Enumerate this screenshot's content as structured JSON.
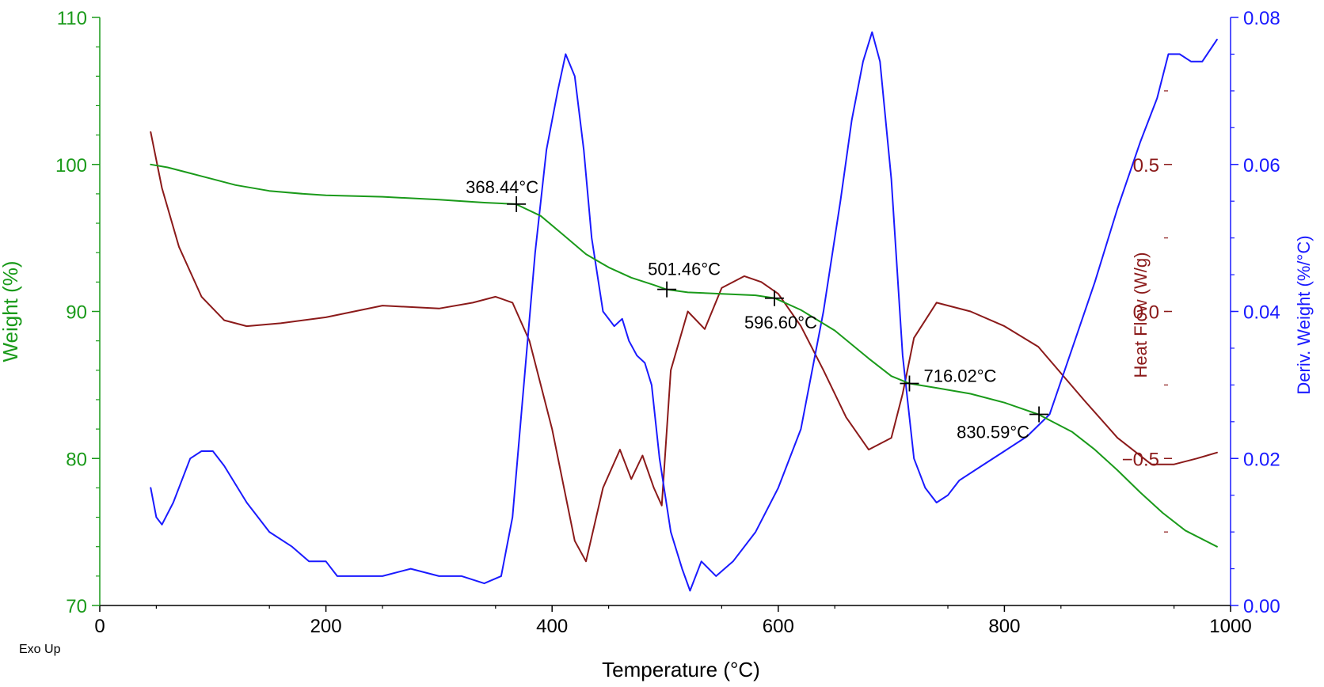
{
  "chart_data": {
    "type": "line",
    "xlabel": "Temperature (°C)",
    "xlim": [
      0,
      1000
    ],
    "x_ticks": [
      "0",
      "200",
      "400",
      "600",
      "800",
      "1000"
    ],
    "x_tick_values": [
      0,
      200,
      400,
      600,
      800,
      1000
    ],
    "grid": false,
    "corner_label": "Exo Up",
    "axes": {
      "weight": {
        "label": "Weight (%)",
        "side": "left",
        "color": "#1a9a1a",
        "lim": [
          70,
          110
        ],
        "ticks": [
          "70",
          "80",
          "90",
          "100",
          "110"
        ],
        "tick_values": [
          70,
          80,
          90,
          100,
          110
        ]
      },
      "heat_flow": {
        "label": "Heat Flow (W/g)",
        "side": "right-inner",
        "color": "#8b1a1a",
        "lim": [
          -1.0,
          1.0
        ],
        "ticks": [
          "−0.5",
          "0.0",
          "0.5"
        ],
        "tick_values": [
          -0.5,
          0.0,
          0.5
        ]
      },
      "deriv_weight": {
        "label": "Deriv. Weight (%/°C)",
        "side": "right",
        "color": "#1a1aff",
        "lim": [
          0.0,
          0.08
        ],
        "ticks": [
          "0.00",
          "0.02",
          "0.04",
          "0.06",
          "0.08"
        ],
        "tick_values": [
          0.0,
          0.02,
          0.04,
          0.06,
          0.08
        ]
      }
    },
    "series": [
      {
        "name": "Weight (%)",
        "axis": "weight",
        "color": "#1a9a1a",
        "x": [
          45,
          60,
          80,
          100,
          120,
          150,
          180,
          200,
          250,
          300,
          340,
          368,
          390,
          410,
          430,
          450,
          470,
          490,
          501,
          520,
          550,
          580,
          597,
          620,
          650,
          680,
          700,
          716,
          740,
          770,
          800,
          830,
          860,
          880,
          900,
          920,
          940,
          960,
          988
        ],
        "y": [
          100.0,
          99.8,
          99.4,
          99.0,
          98.6,
          98.2,
          98.0,
          97.9,
          97.8,
          97.6,
          97.4,
          97.3,
          96.5,
          95.2,
          93.9,
          93.0,
          92.3,
          91.8,
          91.5,
          91.3,
          91.2,
          91.1,
          90.9,
          90.1,
          88.7,
          86.8,
          85.6,
          85.1,
          84.8,
          84.4,
          83.8,
          83.0,
          81.8,
          80.6,
          79.2,
          77.7,
          76.3,
          75.1,
          74.0
        ]
      },
      {
        "name": "Heat Flow (W/g)",
        "axis": "heat_flow",
        "color": "#8b1a1a",
        "x": [
          45,
          55,
          70,
          90,
          110,
          130,
          160,
          200,
          250,
          300,
          330,
          350,
          365,
          380,
          400,
          420,
          430,
          445,
          460,
          470,
          480,
          490,
          497,
          505,
          520,
          535,
          550,
          570,
          585,
          600,
          620,
          640,
          660,
          680,
          700,
          710,
          720,
          740,
          770,
          800,
          830,
          870,
          900,
          930,
          950,
          970,
          988
        ],
        "y": [
          0.61,
          0.42,
          0.22,
          0.05,
          -0.03,
          -0.05,
          -0.04,
          -0.02,
          0.02,
          0.01,
          0.03,
          0.05,
          0.03,
          -0.1,
          -0.4,
          -0.78,
          -0.85,
          -0.6,
          -0.47,
          -0.57,
          -0.49,
          -0.6,
          -0.66,
          -0.2,
          0.0,
          -0.06,
          0.08,
          0.12,
          0.1,
          0.06,
          -0.05,
          -0.2,
          -0.36,
          -0.47,
          -0.43,
          -0.28,
          -0.09,
          0.03,
          0.0,
          -0.05,
          -0.12,
          -0.3,
          -0.43,
          -0.52,
          -0.52,
          -0.5,
          -0.48
        ]
      },
      {
        "name": "Deriv. Weight (%/°C)",
        "axis": "deriv_weight",
        "color": "#1a1aff",
        "x": [
          45,
          50,
          55,
          65,
          80,
          90,
          100,
          110,
          130,
          150,
          170,
          185,
          195,
          200,
          210,
          230,
          250,
          275,
          300,
          320,
          340,
          355,
          365,
          375,
          385,
          395,
          405,
          412,
          420,
          428,
          435,
          445,
          455,
          462,
          468,
          475,
          482,
          488,
          495,
          505,
          515,
          522,
          532,
          545,
          560,
          580,
          600,
          620,
          640,
          655,
          665,
          675,
          683,
          690,
          700,
          710,
          720,
          730,
          740,
          750,
          760,
          780,
          800,
          820,
          840,
          860,
          880,
          900,
          920,
          935,
          945,
          955,
          965,
          975,
          988
        ],
        "y": [
          0.016,
          0.012,
          0.011,
          0.014,
          0.02,
          0.021,
          0.021,
          0.019,
          0.014,
          0.01,
          0.008,
          0.006,
          0.006,
          0.006,
          0.004,
          0.004,
          0.004,
          0.005,
          0.004,
          0.004,
          0.003,
          0.004,
          0.012,
          0.03,
          0.048,
          0.062,
          0.07,
          0.075,
          0.072,
          0.062,
          0.05,
          0.04,
          0.038,
          0.039,
          0.036,
          0.034,
          0.033,
          0.03,
          0.02,
          0.01,
          0.005,
          0.002,
          0.006,
          0.004,
          0.006,
          0.01,
          0.016,
          0.024,
          0.04,
          0.055,
          0.066,
          0.074,
          0.078,
          0.074,
          0.058,
          0.034,
          0.02,
          0.016,
          0.014,
          0.015,
          0.017,
          0.019,
          0.021,
          0.023,
          0.026,
          0.035,
          0.044,
          0.054,
          0.063,
          0.069,
          0.075,
          0.075,
          0.074,
          0.074,
          0.077
        ]
      }
    ],
    "annotations": [
      {
        "label": "368.44°C",
        "x": 368.44,
        "y": 97.3,
        "series": "Weight (%)",
        "text_pos": "above-left"
      },
      {
        "label": "501.46°C",
        "x": 501.46,
        "y": 91.5,
        "series": "Weight (%)",
        "text_pos": "above"
      },
      {
        "label": "596.60°C",
        "x": 596.6,
        "y": 90.9,
        "series": "Weight (%)",
        "text_pos": "below"
      },
      {
        "label": "716.02°C",
        "x": 716.02,
        "y": 85.1,
        "series": "Weight (%)",
        "text_pos": "right"
      },
      {
        "label": "830.59°C",
        "x": 830.59,
        "y": 83.0,
        "series": "Weight (%)",
        "text_pos": "below-left"
      }
    ]
  }
}
